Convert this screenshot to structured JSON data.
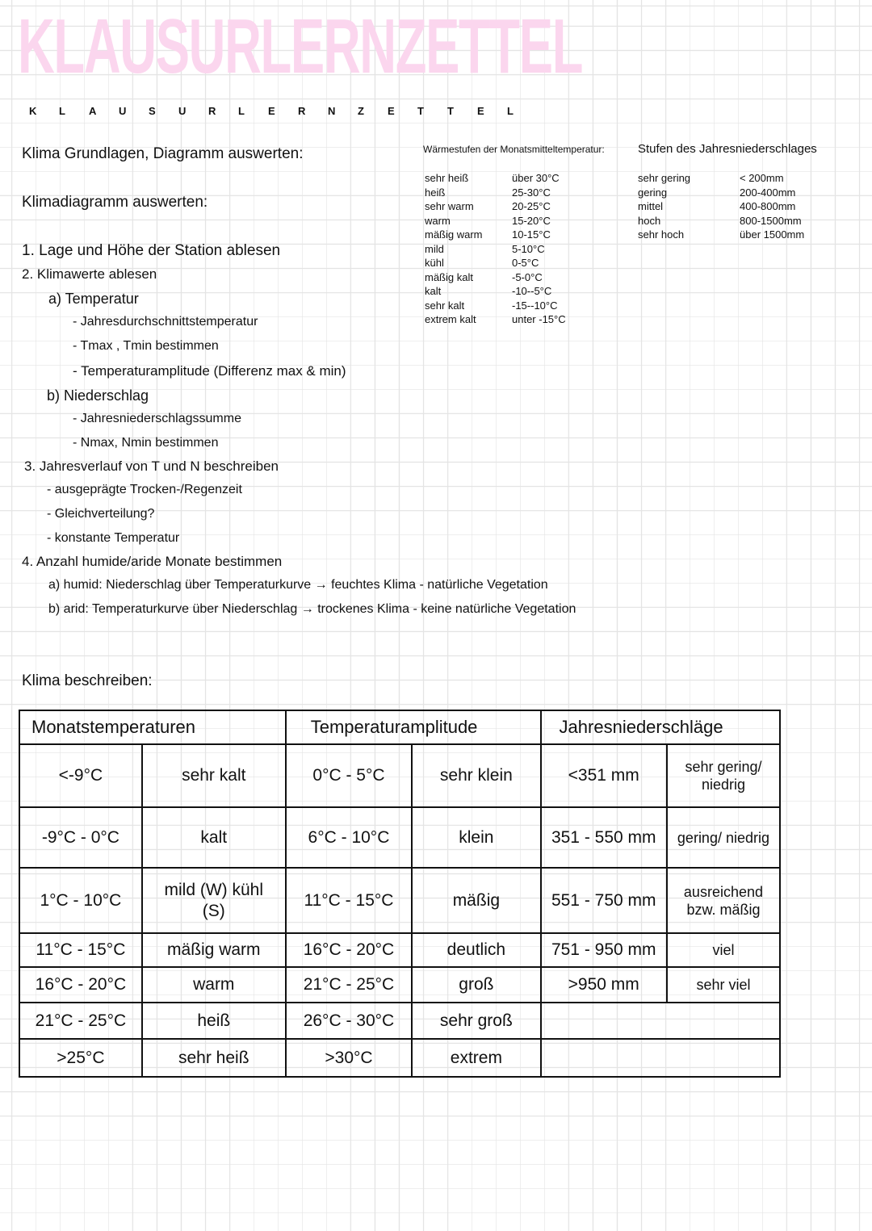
{
  "title": {
    "big": "KLAUSURLERNZETTEL",
    "letters": [
      "K",
      "L",
      "A",
      "U",
      "S",
      "U",
      "R",
      "L",
      "E",
      "R",
      "N",
      "Z",
      "E",
      "T",
      "T",
      "E",
      "L"
    ]
  },
  "section1": {
    "heading": "Klima Grundlagen, Diagramm auswerten:",
    "subheading": "Klimadiagramm auswerten:"
  },
  "steps": [
    "1. Lage und Höhe der Station ablesen",
    "2. Klimawerte ablesen",
    "a) Temperatur",
    "- Jahresdurchschnittstemperatur",
    "- Tmax , Tmin bestimmen",
    "- Temperaturamplitude (Differenz max & min)",
    "b) Niederschlag",
    "- Jahresniederschlagssumme",
    "- Nmax, Nmin bestimmen",
    "3. Jahresverlauf von T und N beschreiben",
    "- ausgeprägte Trocken-/Regenzeit",
    "- Gleichverteilung?",
    "- konstante Temperatur",
    "4. Anzahl humide/aride Monate bestimmen",
    "a) humid: Niederschlag über Temperaturkurve → feuchtes Klima - natürliche Vegetation",
    "b) arid: Temperaturkurve über Niederschlag → trockenes Klima - keine natürliche Vegetation"
  ],
  "waermestufen": {
    "title": "Wärmestufen der Monatsmitteltemperatur:",
    "rows": [
      [
        "sehr heiß",
        "über 30°C"
      ],
      [
        "heiß",
        "25-30°C"
      ],
      [
        "sehr warm",
        "20-25°C"
      ],
      [
        "warm",
        "15-20°C"
      ],
      [
        "mäßig warm",
        "10-15°C"
      ],
      [
        "mild",
        "5-10°C"
      ],
      [
        "kühl",
        "0-5°C"
      ],
      [
        "mäßig kalt",
        "-5-0°C"
      ],
      [
        "kalt",
        "-10--5°C"
      ],
      [
        "sehr kalt",
        "-15--10°C"
      ],
      [
        "extrem kalt",
        "unter -15°C"
      ]
    ]
  },
  "niederschlag": {
    "title": "Stufen des Jahresniederschlages",
    "rows": [
      [
        "sehr gering",
        "< 200mm"
      ],
      [
        "gering",
        "200-400mm"
      ],
      [
        "mittel",
        "400-800mm"
      ],
      [
        "hoch",
        "800-1500mm"
      ],
      [
        "sehr hoch",
        "über 1500mm"
      ]
    ]
  },
  "section2": {
    "heading": "Klima beschreiben:"
  },
  "table": {
    "headers": [
      "Monatstemperaturen",
      "Temperaturamplitude",
      "Jahresniederschläge"
    ],
    "rows": [
      [
        "<-9°C",
        "sehr kalt",
        "0°C - 5°C",
        "sehr klein",
        "<351 mm",
        "sehr gering/ niedrig"
      ],
      [
        "-9°C - 0°C",
        "kalt",
        "6°C - 10°C",
        "klein",
        "351 - 550 mm",
        "gering/ niedrig"
      ],
      [
        "1°C - 10°C",
        "mild (W) kühl (S)",
        "11°C - 15°C",
        "mäßig",
        "551 - 750 mm",
        "ausreichend bzw. mäßig"
      ],
      [
        "11°C - 15°C",
        "mäßig warm",
        "16°C - 20°C",
        "deutlich",
        "751 - 950 mm",
        "viel"
      ],
      [
        "16°C - 20°C",
        "warm",
        "21°C - 25°C",
        "groß",
        ">950 mm",
        "sehr viel"
      ],
      [
        "21°C - 25°C",
        "heiß",
        "26°C - 30°C",
        "sehr groß",
        "",
        ""
      ],
      [
        ">25°C",
        "sehr heiß",
        ">30°C",
        "extrem",
        "",
        ""
      ]
    ]
  },
  "colors": {
    "title_pink": "#fbd6ee",
    "ink": "#111111",
    "grid": "#e4e4e4"
  }
}
